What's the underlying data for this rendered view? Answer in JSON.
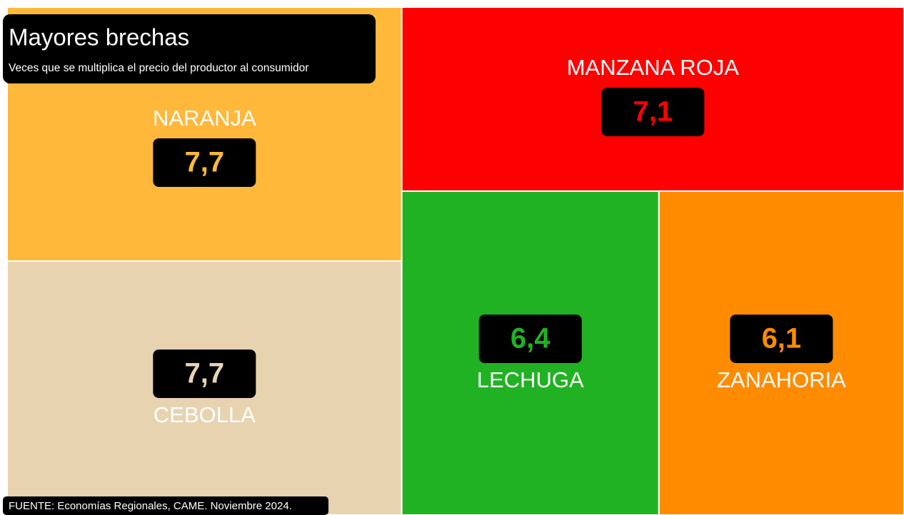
{
  "chart_data": {
    "type": "treemap",
    "title": "Mayores brechas",
    "subtitle": "Veces que se multiplica el precio del productor al consumidor",
    "source": "FUENTE: Economías Regionales, CAME. Noviembre 2024.",
    "categories": [
      "NARANJA",
      "CEBOLLA",
      "MANZANA ROJA",
      "LECHUGA",
      "ZANAHORIA"
    ],
    "values": [
      7.7,
      7.7,
      7.1,
      6.4,
      6.1
    ],
    "value_labels": [
      "7,7",
      "7,7",
      "7,1",
      "6,4",
      "6,1"
    ],
    "colors": [
      "#ffb83a",
      "#e8d3b1",
      "#ff0000",
      "#20b222",
      "#ff8b00"
    ]
  }
}
